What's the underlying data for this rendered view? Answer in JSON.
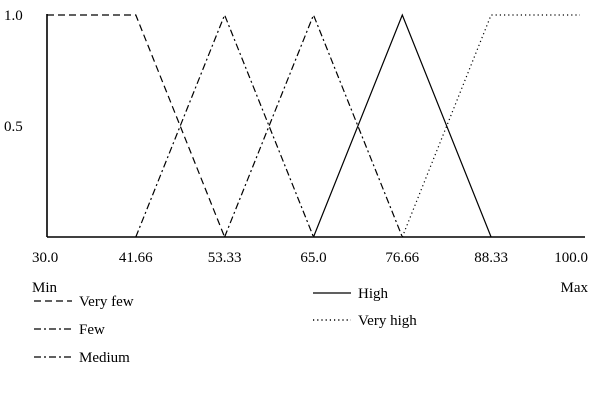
{
  "chart_data": {
    "type": "line",
    "title": "",
    "xlabel": "",
    "ylabel": "",
    "xlim": [
      30.0,
      100.0
    ],
    "ylim": [
      0,
      1.0
    ],
    "x_ticks": [
      {
        "value": 30.0,
        "label": "30.0"
      },
      {
        "value": 41.66,
        "label": "41.66"
      },
      {
        "value": 53.33,
        "label": "53.33"
      },
      {
        "value": 65.0,
        "label": "65.0"
      },
      {
        "value": 76.66,
        "label": "76.66"
      },
      {
        "value": 88.33,
        "label": "88.33"
      },
      {
        "value": 100.0,
        "label": "100.0"
      }
    ],
    "y_ticks": [
      {
        "value": 0.5,
        "label": "0.5"
      },
      {
        "value": 1.0,
        "label": "1.0"
      }
    ],
    "axis_end_labels": {
      "min": "Min",
      "max": "Max"
    },
    "grid": false,
    "legend_position": "bottom",
    "series": [
      {
        "name": "Very few",
        "style": "dashed",
        "points": [
          [
            30.0,
            1.0
          ],
          [
            41.66,
            1.0
          ],
          [
            53.33,
            0
          ]
        ]
      },
      {
        "name": "Few",
        "style": "dashdot",
        "points": [
          [
            41.66,
            0
          ],
          [
            53.33,
            1.0
          ],
          [
            65.0,
            0
          ]
        ]
      },
      {
        "name": "Medium",
        "style": "dashdot",
        "points": [
          [
            53.33,
            0
          ],
          [
            65.0,
            1.0
          ],
          [
            76.66,
            0
          ]
        ]
      },
      {
        "name": "High",
        "style": "solid",
        "points": [
          [
            65.0,
            0
          ],
          [
            76.66,
            1.0
          ],
          [
            88.33,
            0
          ]
        ]
      },
      {
        "name": "Very high",
        "style": "dotted",
        "points": [
          [
            76.66,
            0
          ],
          [
            88.33,
            1.0
          ],
          [
            100.0,
            1.0
          ]
        ]
      }
    ]
  }
}
